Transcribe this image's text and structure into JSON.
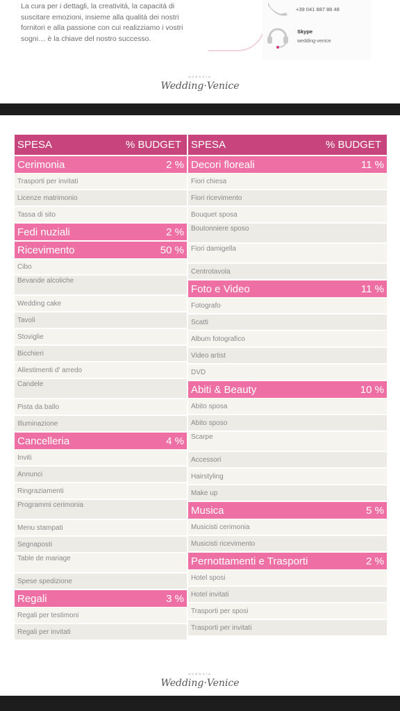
{
  "intro_text": "La cura per i dettagli, la creatività, la capacità di suscitare emozioni, insieme alla qualità dei nostri fornitori e alla passione con cui realizziamo i vostri sogni… è la chiave del nostro successo.",
  "contact": {
    "phone": "+39 041 887 88 48",
    "skype_label": "Skype",
    "skype_value": "wedding-venice"
  },
  "logo": {
    "small": "AGENZIA",
    "main": "Wedding·Venice"
  },
  "table": {
    "header_spesa": "SPESA",
    "header_budget": "% BUDGET",
    "left": [
      {
        "name": "Cerimonia",
        "pct": "2 %",
        "items": [
          "Trasporti per invitati",
          "Licenze matrimonio",
          "Tassa di sito"
        ]
      },
      {
        "name": "Fedi nuziali",
        "pct": "2 %",
        "items": []
      },
      {
        "name": "Ricevimento",
        "pct": "50 %",
        "items": [
          "Cibo",
          "Bevande alcoliche",
          "Wedding cake",
          "Tavoli",
          "Stoviglie",
          "Bicchieri",
          "Allestimenti d' arredo",
          "Candele",
          "Pista da ballo",
          "Illuminazione"
        ]
      },
      {
        "name": "Cancelleria",
        "pct": "4 %",
        "items": [
          "Inviti",
          "Annunci",
          "Ringraziamenti",
          "Programmi cerimonia",
          "Menu stampati",
          "Segnaposti",
          "Table de mariage",
          "Spese spedizione"
        ]
      },
      {
        "name": "Regali",
        "pct": "3 %",
        "items": [
          "Regali per testimoni",
          "Regali per invitati"
        ]
      }
    ],
    "right": [
      {
        "name": "Decori floreali",
        "pct": "11 %",
        "items": [
          "Fiori chiesa",
          "Fiori ricevimento",
          "Bouquet sposa",
          "Boutonniere sposo",
          "Fiori damigella",
          "Centrotavola"
        ]
      },
      {
        "name": "Foto e Video",
        "pct": "11 %",
        "items": [
          "Fotografo",
          "Scatti",
          "Album fotografico",
          "Video artist",
          "DVD"
        ]
      },
      {
        "name": "Abiti & Beauty",
        "pct": "10 %",
        "items": [
          "Abito sposa",
          "Abito sposo",
          "Scarpe",
          "Accessori",
          "Hairstyling",
          "Make up"
        ]
      },
      {
        "name": "Musica",
        "pct": "5 %",
        "items": [
          "Musicisti cerimonia",
          "Musicisti ricevimento"
        ]
      },
      {
        "name": "Pernottamenti e Trasporti",
        "pct": "2 %",
        "items": [
          "Hotel sposi",
          "Hotel invitati",
          "Trasporti per sposi",
          "Trasporti per invitati"
        ]
      }
    ]
  }
}
